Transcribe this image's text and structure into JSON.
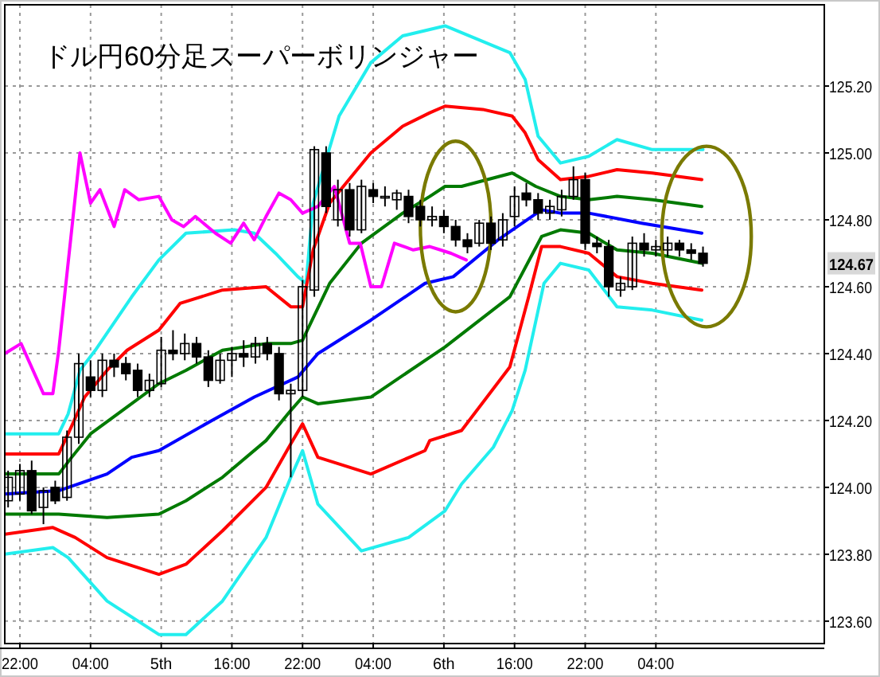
{
  "chart_data": {
    "type": "candlestick",
    "title": "ドル円60分足スーパーボリンジャー",
    "x": [
      "--08-04T21:00",
      "--08-04T22:00",
      "--08-04T23:00",
      "--08-05T00:00",
      "--08-05T01:00",
      "--08-05T02:00",
      "--08-05T03:00",
      "--08-05T04:00",
      "--08-05T05:00",
      "--08-05T06:00",
      "--08-05T07:00",
      "--08-05T08:00",
      "--08-05T09:00",
      "--08-05T10:00",
      "--08-05T11:00",
      "--08-05T12:00",
      "--08-05T13:00",
      "--08-05T14:00",
      "--08-05T15:00",
      "--08-05T16:00",
      "--08-05T17:00",
      "--08-05T18:00",
      "--08-05T19:00",
      "--08-05T20:00",
      "--08-05T21:00",
      "--08-05T22:00",
      "--08-05T23:00",
      "--08-06T00:00",
      "--08-06T01:00",
      "--08-06T02:00",
      "--08-06T03:00",
      "--08-06T04:00",
      "--08-06T05:00",
      "--08-06T06:00",
      "--08-06T07:00",
      "--08-06T08:00",
      "--08-06T09:00",
      "--08-06T10:00",
      "--08-06T11:00",
      "--08-06T12:00",
      "--08-06T13:00",
      "--08-06T14:00",
      "--08-06T15:00",
      "--08-06T16:00",
      "--08-06T17:00",
      "--08-06T18:00",
      "--08-06T19:00",
      "--08-06T20:00",
      "--08-06T21:00",
      "--08-06T22:00",
      "--08-06T23:00",
      "--08-07T00:00",
      "--08-07T01:00",
      "--08-07T02:00",
      "--08-07T03:00",
      "--08-07T04:00",
      "--08-07T05:00",
      "--08-07T06:00",
      "--08-07T07:00",
      "--08-07T08:00"
    ],
    "ohlc": [
      [
        123.96,
        124.05,
        123.94,
        124.03
      ],
      [
        123.98,
        124.07,
        123.96,
        124.05
      ],
      [
        124.05,
        124.08,
        123.92,
        123.93
      ],
      [
        123.94,
        124.0,
        123.89,
        123.99
      ],
      [
        124.0,
        124.02,
        123.95,
        123.96
      ],
      [
        123.97,
        124.17,
        123.96,
        124.15
      ],
      [
        124.15,
        124.4,
        124.13,
        124.37
      ],
      [
        124.33,
        124.38,
        124.27,
        124.29
      ],
      [
        124.29,
        124.4,
        124.27,
        124.38
      ],
      [
        124.38,
        124.4,
        124.33,
        124.36
      ],
      [
        124.37,
        124.39,
        124.32,
        124.34
      ],
      [
        124.35,
        124.37,
        124.27,
        124.29
      ],
      [
        124.29,
        124.34,
        124.27,
        124.32
      ],
      [
        124.31,
        124.45,
        124.3,
        124.41
      ],
      [
        124.41,
        124.47,
        124.38,
        124.4
      ],
      [
        124.4,
        124.46,
        124.38,
        124.43
      ],
      [
        124.43,
        124.45,
        124.37,
        124.39
      ],
      [
        124.39,
        124.41,
        124.3,
        124.32
      ],
      [
        124.32,
        124.4,
        124.31,
        124.38
      ],
      [
        124.38,
        124.42,
        124.33,
        124.4
      ],
      [
        124.4,
        124.44,
        124.36,
        124.39
      ],
      [
        124.39,
        124.45,
        124.37,
        124.43
      ],
      [
        124.43,
        124.45,
        124.38,
        124.4
      ],
      [
        124.4,
        124.42,
        124.26,
        124.28
      ],
      [
        124.28,
        124.31,
        124.03,
        124.29
      ],
      [
        124.29,
        124.62,
        124.27,
        124.6
      ],
      [
        124.59,
        125.02,
        124.57,
        125.01
      ],
      [
        125.0,
        125.02,
        124.82,
        124.84
      ],
      [
        124.8,
        124.92,
        124.78,
        124.89
      ],
      [
        124.89,
        124.91,
        124.75,
        124.77
      ],
      [
        124.77,
        124.92,
        124.76,
        124.9
      ],
      [
        124.89,
        124.91,
        124.85,
        124.87
      ],
      [
        124.87,
        124.9,
        124.84,
        124.87
      ],
      [
        124.86,
        124.89,
        124.83,
        124.88
      ],
      [
        124.87,
        124.89,
        124.79,
        124.81
      ],
      [
        124.84,
        124.86,
        124.78,
        124.8
      ],
      [
        124.8,
        124.84,
        124.78,
        124.81
      ],
      [
        124.81,
        124.83,
        124.76,
        124.78
      ],
      [
        124.78,
        124.8,
        124.72,
        124.74
      ],
      [
        124.74,
        124.76,
        124.7,
        124.72
      ],
      [
        124.73,
        124.8,
        124.72,
        124.79
      ],
      [
        124.79,
        124.81,
        124.71,
        124.73
      ],
      [
        124.74,
        124.82,
        124.72,
        124.8
      ],
      [
        124.81,
        124.9,
        124.78,
        124.87
      ],
      [
        124.88,
        124.91,
        124.84,
        124.86
      ],
      [
        124.86,
        124.88,
        124.8,
        124.82
      ],
      [
        124.82,
        124.86,
        124.8,
        124.84
      ],
      [
        124.83,
        124.89,
        124.81,
        124.87
      ],
      [
        124.87,
        124.96,
        124.86,
        124.92
      ],
      [
        124.92,
        124.94,
        124.71,
        124.73
      ],
      [
        124.73,
        124.75,
        124.7,
        124.72
      ],
      [
        124.72,
        124.74,
        124.57,
        124.6
      ],
      [
        124.59,
        124.63,
        124.57,
        124.61
      ],
      [
        124.6,
        124.75,
        124.59,
        124.73
      ],
      [
        124.73,
        124.76,
        124.69,
        124.71
      ],
      [
        124.71,
        124.74,
        124.69,
        124.72
      ],
      [
        124.71,
        124.75,
        124.69,
        124.73
      ],
      [
        124.73,
        124.74,
        124.69,
        124.71
      ],
      [
        124.71,
        124.73,
        124.68,
        124.7
      ],
      [
        124.7,
        124.72,
        124.66,
        124.67
      ]
    ],
    "series": [
      {
        "type": "line",
        "color": "#22eeee",
        "x": [
          "--08-04T20:43",
          "--08-05T01:18",
          "--08-05T02:06",
          "--08-05T03:06",
          "--08-05T04:24",
          "--08-05T07:30",
          "--08-05T09:48",
          "--08-05T12:06",
          "--08-05T16:12",
          "--08-05T17:54",
          "--08-05T19:42",
          "--08-05T21:36",
          "--08-05T22:18",
          "--08-05T22:54",
          "--08-06T01:06",
          "--08-06T03:48",
          "--08-06T06:30",
          "--08-06T10:06",
          "--08-06T15:36",
          "--08-06T16:54",
          "--08-06T18:00",
          "--08-06T19:54",
          "--08-06T22:18",
          "--08-07T00:42",
          "--08-07T03:42",
          "--08-07T08:00"
        ],
        "values": [
          124.16,
          124.16,
          124.22,
          124.35,
          124.41,
          124.57,
          124.68,
          124.76,
          124.77,
          124.76,
          124.7,
          124.63,
          124.61,
          124.85,
          125.11,
          125.27,
          125.35,
          125.38,
          125.3,
          125.22,
          125.05,
          124.97,
          124.99,
          125.04,
          125.01,
          125.01
        ]
      },
      {
        "type": "line",
        "color": "#ff0000",
        "x": [
          "--08-04T20:43",
          "--08-05T01:18",
          "--08-05T02:06",
          "--08-05T03:30",
          "--08-05T05:24",
          "--08-05T07:06",
          "--08-05T09:48",
          "--08-05T11:36",
          "--08-05T15:12",
          "--08-05T18:54",
          "--08-05T21:00",
          "--08-05T22:00",
          "--08-05T22:54",
          "--08-06T00:18",
          "--08-06T03:48",
          "--08-06T06:30",
          "--08-06T08:48",
          "--08-06T10:06",
          "--08-06T13:18",
          "--08-06T15:48",
          "--08-06T16:54",
          "--08-06T18:00",
          "--08-06T19:54",
          "--08-06T22:18",
          "--08-07T00:42",
          "--08-07T03:42",
          "--08-07T07:54"
        ],
        "values": [
          124.1,
          124.1,
          124.16,
          124.27,
          124.35,
          124.41,
          124.47,
          124.55,
          124.59,
          124.6,
          124.54,
          124.54,
          124.71,
          124.85,
          125.0,
          125.08,
          125.12,
          125.14,
          125.13,
          125.11,
          125.06,
          124.98,
          124.92,
          124.93,
          124.95,
          124.94,
          124.92
        ]
      },
      {
        "type": "line",
        "color": "#007a00",
        "x": [
          "--08-04T20:43",
          "--08-05T01:18",
          "--08-05T02:24",
          "--08-05T04:00",
          "--08-05T06:42",
          "--08-05T09:48",
          "--08-05T12:06",
          "--08-05T15:12",
          "--08-05T18:54",
          "--08-05T21:00",
          "--08-05T22:00",
          "--08-05T22:24",
          "--08-06T00:18",
          "--08-06T03:00",
          "--08-06T06:30",
          "--08-06T08:48",
          "--08-06T10:06",
          "--08-06T11:30",
          "--08-06T15:48",
          "--08-06T17:48",
          "--08-06T19:54",
          "--08-06T22:18",
          "--08-07T00:42",
          "--08-07T03:42",
          "--08-07T07:54"
        ],
        "values": [
          124.04,
          124.04,
          124.09,
          124.16,
          124.23,
          124.31,
          124.35,
          124.41,
          124.43,
          124.43,
          124.44,
          124.47,
          124.61,
          124.73,
          124.82,
          124.87,
          124.9,
          124.9,
          124.94,
          124.9,
          124.87,
          124.86,
          124.87,
          124.86,
          124.84
        ]
      },
      {
        "type": "line",
        "color": "#0000ff",
        "x": [
          "--08-04T20:43",
          "--08-05T01:18",
          "--08-05T05:24",
          "--08-05T07:30",
          "--08-05T09:48",
          "--08-05T14:18",
          "--08-05T17:54",
          "--08-05T21:36",
          "--08-05T23:18",
          "--08-06T03:48",
          "--08-06T08:24",
          "--08-06T10:48",
          "--08-06T14:36",
          "--08-06T18:18",
          "--08-06T19:54",
          "--08-06T22:18",
          "--08-07T02:48",
          "--08-07T07:54"
        ],
        "values": [
          123.98,
          123.99,
          124.04,
          124.09,
          124.11,
          124.2,
          124.27,
          124.33,
          124.4,
          124.5,
          124.61,
          124.63,
          124.74,
          124.83,
          124.82,
          124.82,
          124.79,
          124.76
        ]
      },
      {
        "type": "line",
        "color": "#007a00",
        "x": [
          "--08-04T20:43",
          "--08-05T01:18",
          "--08-05T05:24",
          "--08-05T09:48",
          "--08-05T12:06",
          "--08-05T15:12",
          "--08-05T18:54",
          "--08-05T21:00",
          "--08-05T22:00",
          "--08-05T23:18",
          "--08-06T03:48",
          "--08-06T10:06",
          "--08-06T15:36",
          "--08-06T18:18",
          "--08-06T19:54",
          "--08-06T22:18",
          "--08-07T00:42",
          "--08-07T03:42",
          "--08-07T07:54"
        ],
        "values": [
          123.92,
          123.92,
          123.91,
          123.92,
          123.96,
          124.03,
          124.14,
          124.23,
          124.27,
          124.25,
          124.27,
          124.42,
          124.57,
          124.75,
          124.77,
          124.76,
          124.71,
          124.7,
          124.67
        ]
      },
      {
        "type": "line",
        "color": "#ff0000",
        "x": [
          "--08-04T20:43",
          "--08-05T00:48",
          "--08-05T02:42",
          "--08-05T05:24",
          "--08-05T09:48",
          "--08-05T12:06",
          "--08-05T15:12",
          "--08-05T18:54",
          "--08-05T21:00",
          "--08-05T22:00",
          "--08-05T23:18",
          "--08-06T03:48",
          "--08-06T08:24",
          "--08-06T08:48",
          "--08-06T11:30",
          "--08-06T15:36",
          "--08-06T17:12",
          "--08-06T18:18",
          "--08-06T19:54",
          "--08-06T22:18",
          "--08-07T00:42",
          "--08-07T03:42",
          "--08-07T07:54"
        ],
        "values": [
          123.86,
          123.88,
          123.85,
          123.79,
          123.74,
          123.77,
          123.87,
          124.0,
          124.13,
          124.19,
          124.09,
          124.04,
          124.11,
          124.14,
          124.17,
          124.36,
          124.57,
          124.72,
          124.72,
          124.7,
          124.63,
          124.61,
          124.59
        ]
      },
      {
        "type": "line",
        "color": "#22eeee",
        "x": [
          "--08-04T20:43",
          "--08-05T00:48",
          "--08-05T02:06",
          "--08-05T05:24",
          "--08-05T09:48",
          "--08-05T12:06",
          "--08-05T15:12",
          "--08-05T18:54",
          "--08-05T21:00",
          "--08-05T22:00",
          "--08-05T23:18",
          "--08-06T03:00",
          "--08-06T07:00",
          "--08-06T10:06",
          "--08-06T11:30",
          "--08-06T14:12",
          "--08-06T15:48",
          "--08-06T16:54",
          "--08-06T18:30",
          "--08-06T19:54",
          "--08-06T22:18",
          "--08-07T00:42",
          "--08-07T03:42",
          "--08-07T07:54"
        ],
        "values": [
          123.8,
          123.82,
          123.79,
          123.66,
          123.56,
          123.56,
          123.66,
          123.85,
          124.03,
          124.11,
          123.95,
          123.81,
          123.85,
          123.93,
          124.01,
          124.12,
          124.23,
          124.35,
          124.61,
          124.67,
          124.65,
          124.54,
          124.53,
          124.5
        ]
      },
      {
        "type": "line",
        "color": "#ff00ff",
        "x": [
          "--08-04T20:43",
          "--08-04T22:06",
          "--08-05T00:00",
          "--08-05T00:48",
          "--08-05T01:18",
          "--08-05T03:06",
          "--08-05T04:00",
          "--08-05T04:48",
          "--08-05T06:00",
          "--08-05T06:54",
          "--08-05T08:06",
          "--08-05T09:48",
          "--08-05T10:54",
          "--08-05T11:54",
          "--08-05T12:54",
          "--08-05T14:36",
          "--08-05T15:54",
          "--08-05T17:00",
          "--08-05T17:54",
          "--08-05T18:54",
          "--08-05T20:00",
          "--08-05T21:00",
          "--08-05T22:00",
          "--08-05T23:18",
          "--08-06T00:42",
          "--08-06T02:00",
          "--08-06T02:54",
          "--08-06T03:48",
          "--08-06T04:42",
          "--08-06T05:48",
          "--08-06T07:24",
          "--08-06T08:48",
          "--08-06T09:42",
          "--08-06T10:36",
          "--08-06T11:54"
        ],
        "values": [
          124.4,
          124.43,
          124.28,
          124.28,
          124.41,
          125.0,
          124.85,
          124.89,
          124.78,
          124.89,
          124.86,
          124.87,
          124.8,
          124.78,
          124.81,
          124.76,
          124.73,
          124.79,
          124.74,
          124.81,
          124.88,
          124.86,
          124.82,
          124.84,
          124.9,
          124.73,
          124.73,
          124.6,
          124.6,
          124.73,
          124.71,
          124.72,
          124.71,
          124.7,
          124.68
        ]
      }
    ],
    "xlim": [
      "--08-04T20:43",
      "--08-07T18:18"
    ],
    "ylim": [
      123.533,
      125.443
    ],
    "xticks": [
      {
        "value": "--08-04T22:00",
        "label": "22:00"
      },
      {
        "value": "--08-05T04:00",
        "label": "04:00"
      },
      {
        "value": "--08-05T10:00",
        "label": "5th"
      },
      {
        "value": "--08-05T16:00",
        "label": "16:00"
      },
      {
        "value": "--08-05T22:00",
        "label": "22:00"
      },
      {
        "value": "--08-06T04:00",
        "label": "04:00"
      },
      {
        "value": "--08-06T10:00",
        "label": "6th"
      },
      {
        "value": "--08-06T16:00",
        "label": "16:00"
      },
      {
        "value": "--08-06T22:00",
        "label": "22:00"
      },
      {
        "value": "--08-07T04:00",
        "label": "04:00"
      }
    ],
    "yticks": [
      {
        "value": 123.6,
        "label": "123.60"
      },
      {
        "value": 123.8,
        "label": "123.80"
      },
      {
        "value": 124.0,
        "label": "124.00"
      },
      {
        "value": 124.2,
        "label": "124.20"
      },
      {
        "value": 124.4,
        "label": "124.40"
      },
      {
        "value": 124.6,
        "label": "124.60"
      },
      {
        "value": 124.8,
        "label": "124.80"
      },
      {
        "value": 125.0,
        "label": "125.00"
      },
      {
        "value": 125.2,
        "label": "125.20"
      }
    ],
    "annotations": [
      "124.67"
    ],
    "grid": true
  }
}
